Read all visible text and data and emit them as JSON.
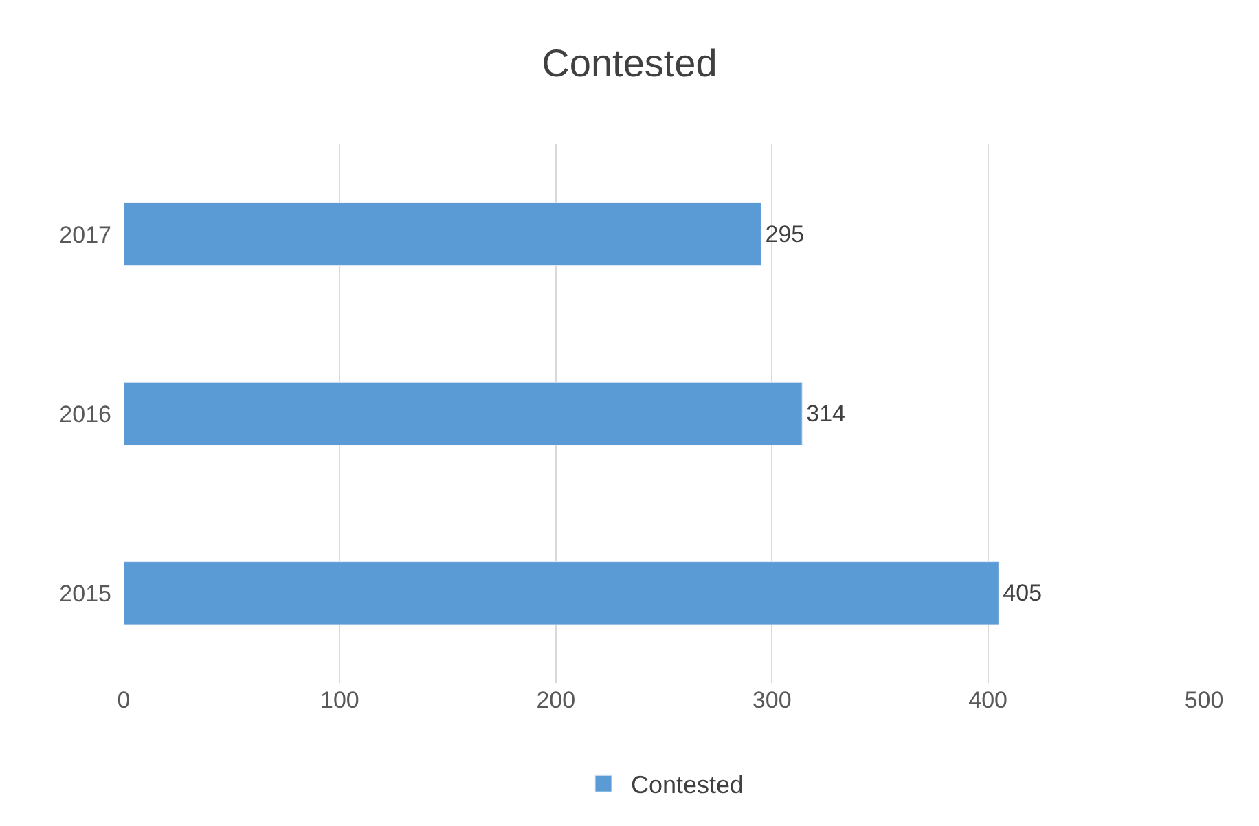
{
  "chart_data": {
    "type": "bar",
    "orientation": "horizontal",
    "title": "Contested",
    "categories": [
      "2017",
      "2016",
      "2015"
    ],
    "series": [
      {
        "name": "Contested",
        "color": "#5b9bd5",
        "values": [
          295,
          314,
          405
        ]
      }
    ],
    "xlim": [
      0,
      500
    ],
    "xticks": [
      0,
      100,
      200,
      300,
      400,
      500
    ],
    "grid": "x",
    "legend": "bottom",
    "data_labels": true
  }
}
